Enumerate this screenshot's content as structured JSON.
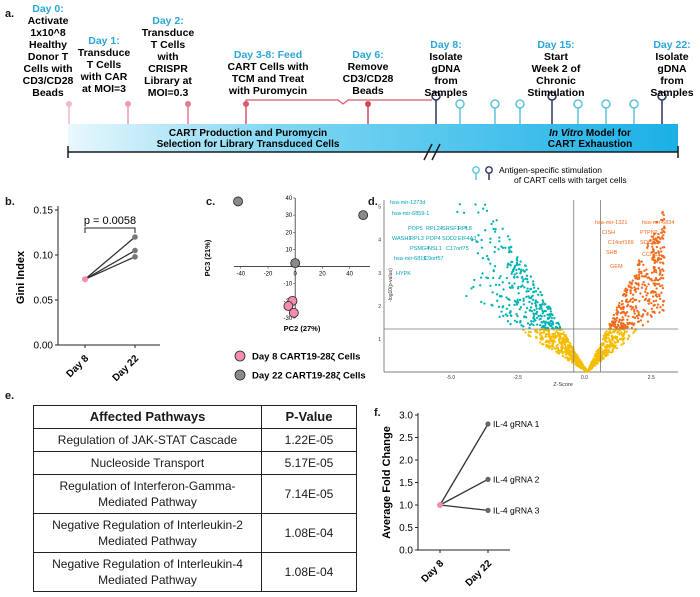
{
  "panels": {
    "a": "a.",
    "b": "b.",
    "c": "c.",
    "d": "d.",
    "e": "e.",
    "f": "f."
  },
  "timeline": {
    "steps": [
      {
        "day": "Day 0:",
        "lines": [
          "Activate",
          "1x10^8",
          "Healthy",
          "Donor T",
          "Cells with",
          "CD3/CD28",
          "Beads"
        ]
      },
      {
        "day": "Day 1:",
        "lines": [
          "Transduce",
          "T Cells",
          "with CAR",
          "at MOI=3"
        ]
      },
      {
        "day": "Day 2:",
        "lines": [
          "Transduce",
          "T Cells",
          "with",
          "CRISPR",
          "Library at",
          "MOI=0.3"
        ]
      },
      {
        "day": "Day 3-8:",
        "lines": [
          "Feed",
          "CART Cells with",
          "TCM and Treat",
          "with Puromycin"
        ]
      },
      {
        "day": "Day 6:",
        "lines": [
          "Remove",
          "CD3/CD28",
          "Beads"
        ]
      },
      {
        "day": "Day 8:",
        "lines": [
          "Isolate",
          "gDNA",
          "from",
          "Samples"
        ]
      },
      {
        "day": "Day 15:",
        "lines": [
          "Start",
          "Week 2 of",
          "Chronic",
          "Stimulation"
        ]
      },
      {
        "day": "Day 22:",
        "lines": [
          "Isolate",
          "gDNA",
          "from",
          "Samples"
        ]
      }
    ],
    "bar_left": [
      "CART Production and Puromycin",
      "Selection for Library Transduced Cells"
    ],
    "bar_right_italic": "In Vitro",
    "bar_right": [
      " Model for",
      "CART Exhaustion"
    ],
    "legend": [
      "Antigen-specific stimulation",
      "of CART cells with target cells"
    ]
  },
  "gini": {
    "ylabel": "Gini Index",
    "yticks": [
      "0.00",
      "0.05",
      "0.10",
      "0.15"
    ],
    "xticks": [
      "Day 8",
      "Day 22"
    ],
    "pvalue": "p = 0.0058"
  },
  "pca": {
    "xlabel": "PC2 (27%)",
    "ylabel": "PC3 (21%)",
    "xticks": [
      "-40",
      "-20",
      "0",
      "20",
      "40"
    ],
    "yticks": [
      "-30",
      "-20",
      "-10",
      "0",
      "10",
      "20",
      "30",
      "40"
    ],
    "legend": [
      "Day 8 CART19-28ζ Cells",
      "Day 22 CART19-28ζ Cells"
    ]
  },
  "volcano": {
    "xlabel": "Z-Score",
    "ylabel": "-log10(p-value)",
    "xticks": [
      "-5.0",
      "-2.5",
      "0.0",
      "2.5"
    ],
    "yticks": [
      "1",
      "2",
      "3",
      "4",
      "5"
    ],
    "left_labels": [
      "hsa-mir-1273d",
      "hsa-mir-6859-1",
      "POP5",
      "RPL24",
      "SRSF1",
      "RPL8",
      "WASH1",
      "RPL3",
      "POP4",
      "SOD2",
      "EIF4A3",
      "PSMG4",
      "NSL1",
      "C17orf75",
      "hsa-mir-6819",
      "C9orf57",
      "HYPK"
    ],
    "right_labels": [
      "hsa-mir-1321",
      "hsa-mir-6834",
      "CISH",
      "PTPN2",
      "C14orf169",
      "SOCS1",
      "SHB",
      "CCNC",
      "GEM"
    ]
  },
  "table": {
    "headers": [
      "Affected Pathways",
      "P-Value"
    ],
    "rows": [
      {
        "pathway": [
          "Regulation of JAK-STAT Cascade"
        ],
        "p": "1.22E-05"
      },
      {
        "pathway": [
          "Nucleoside Transport"
        ],
        "p": "5.17E-05"
      },
      {
        "pathway": [
          "Regulation of Interferon-Gamma-",
          "Mediated Pathway"
        ],
        "p": "7.14E-05"
      },
      {
        "pathway": [
          "Negative Regulation of Interleukin-2",
          "Mediated Pathway"
        ],
        "p": "1.08E-04"
      },
      {
        "pathway": [
          "Negative Regulation of Interleukin-4",
          "Mediated Pathway"
        ],
        "p": "1.08E-04"
      }
    ]
  },
  "chart_data": [
    {
      "type": "line",
      "panel": "b",
      "ylabel": "Gini Index",
      "categories": [
        "Day 8",
        "Day 22"
      ],
      "ylim": [
        0,
        0.15
      ],
      "series": [
        {
          "values": [
            0.073,
            0.12
          ]
        },
        {
          "values": [
            0.073,
            0.105
          ]
        },
        {
          "values": [
            0.073,
            0.098
          ]
        }
      ],
      "annotation": "p = 0.0058"
    },
    {
      "type": "scatter",
      "panel": "c",
      "xlabel": "PC2 (27%)",
      "ylabel": "PC3 (21%)",
      "xlim": [
        -45,
        55
      ],
      "ylim": [
        -30,
        40
      ],
      "series": [
        {
          "name": "Day 8 CART19-28ζ Cells",
          "color": "#f28cb1",
          "points": [
            [
              -2,
              -20
            ],
            [
              -5,
              -23
            ],
            [
              -1,
              -27
            ]
          ]
        },
        {
          "name": "Day 22 CART19-28ζ Cells",
          "color": "#8a8a8a",
          "points": [
            [
              -42,
              38
            ],
            [
              0,
              2
            ],
            [
              50,
              30
            ]
          ]
        }
      ]
    },
    {
      "type": "scatter",
      "panel": "d",
      "xlabel": "Z-Score",
      "ylabel": "-log10(p-value)",
      "xlim": [
        -7.5,
        3.5
      ],
      "ylim": [
        0,
        5.2
      ],
      "threshold_x": [
        -0.4,
        0.6
      ],
      "threshold_y": 1.3,
      "colors": {
        "low": "#00b3b3",
        "high": "#f26a1b",
        "ns": "#f6bd00"
      }
    },
    {
      "type": "line",
      "panel": "f",
      "ylabel": "Average Fold Change",
      "categories": [
        "Day 8",
        "Day 22"
      ],
      "yticks": [
        "0.0",
        "0.5",
        "1.0",
        "1.5",
        "2.0",
        "2.5",
        "3.0"
      ],
      "ylim": [
        0,
        3
      ],
      "series": [
        {
          "name": "IL-4 gRNA 1",
          "values": [
            1.0,
            2.8
          ]
        },
        {
          "name": "IL-4 gRNA 2",
          "values": [
            1.0,
            1.57
          ]
        },
        {
          "name": "IL-4 gRNA 3",
          "values": [
            1.0,
            0.88
          ]
        }
      ]
    }
  ]
}
